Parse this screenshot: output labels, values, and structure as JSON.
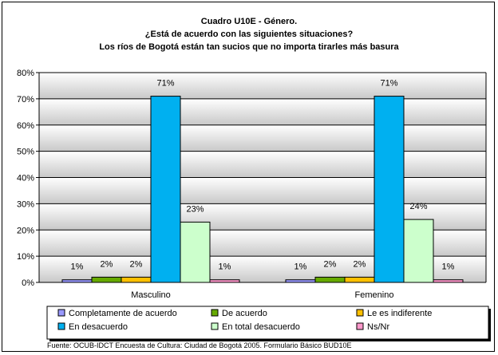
{
  "chart_data": {
    "type": "bar",
    "title": "Cuadro U10E - Género.",
    "subtitle_lines": [
      "¿Está de acuerdo con las siguientes situaciones?",
      "Los ríos de Bogotá están tan sucios que no importa tirarles más basura"
    ],
    "categories": [
      "Masculino",
      "Femenino"
    ],
    "ylim": [
      0,
      80
    ],
    "yticks": [
      0,
      10,
      20,
      30,
      40,
      50,
      60,
      70,
      80
    ],
    "ytick_labels": [
      "0%",
      "10%",
      "20%",
      "30%",
      "40%",
      "50%",
      "60%",
      "70%",
      "80%"
    ],
    "grid": true,
    "legend_position": "bottom",
    "series": [
      {
        "name": "Completamente de acuerdo",
        "color": "#9999ff",
        "values": [
          1,
          1
        ],
        "labels": [
          "1%",
          "1%"
        ]
      },
      {
        "name": "De acuerdo",
        "color": "#66aa00",
        "values": [
          2,
          2
        ],
        "labels": [
          "2%",
          "2%"
        ]
      },
      {
        "name": "Le es indiferente",
        "color": "#ffc000",
        "values": [
          2,
          2
        ],
        "labels": [
          "2%",
          "2%"
        ]
      },
      {
        "name": "En desacuerdo",
        "color": "#00b0f0",
        "values": [
          71,
          71
        ],
        "labels": [
          "71%",
          "71%"
        ]
      },
      {
        "name": "En total desacuerdo",
        "color": "#ccffcc",
        "values": [
          23,
          24
        ],
        "labels": [
          "23%",
          "24%"
        ]
      },
      {
        "name": "Ns/Nr",
        "color": "#ff99cc",
        "values": [
          1,
          1
        ],
        "labels": [
          "1%",
          "1%"
        ]
      }
    ],
    "source": "Fuente: OCUB-IDCT Encuesta de Cultura: Ciudad de Bogotá 2005. Formulario Básico BUD10E"
  }
}
